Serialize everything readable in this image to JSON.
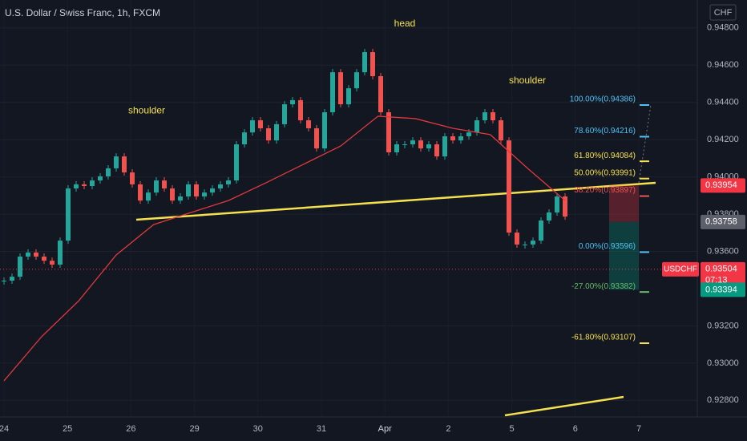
{
  "chart_data": {
    "type": "candlestick",
    "title": "U.S. Dollar / Swiss Franc, 1h, FXCM",
    "currency": "CHF",
    "x_labels": [
      "24",
      "25",
      "26",
      "29",
      "30",
      "31",
      "Apr",
      "2",
      "5",
      "6",
      "7"
    ],
    "series": [
      {
        "name": "USDCHF",
        "up_color": "#26a69a",
        "down_color": "#ef5350",
        "values": [
          0.93443,
          0.93464,
          0.93572,
          0.93594,
          0.93572,
          0.9355,
          0.93529,
          0.93658,
          0.93938,
          0.9396,
          0.93951,
          0.93981,
          0.94003,
          0.94046,
          0.9411,
          0.94024,
          0.9396,
          0.93873,
          0.93916,
          0.93981,
          0.93938,
          0.93873,
          0.93895,
          0.9396,
          0.93895,
          0.93916,
          0.93938,
          0.9396,
          0.93981,
          0.94175,
          0.94239,
          0.94304,
          0.94261,
          0.94196,
          0.94283,
          0.9439,
          0.94412,
          0.94304,
          0.94261,
          0.94153,
          0.94347,
          0.94562,
          0.9439,
          0.94476,
          0.94562,
          0.9467,
          0.94541,
          0.94347,
          0.94132,
          0.94175,
          0.94175,
          0.94196,
          0.94153,
          0.94175,
          0.9411,
          0.94218,
          0.94196,
          0.94218,
          0.94239,
          0.94304,
          0.94347,
          0.94304,
          0.94196,
          0.93701,
          0.93637,
          0.93637,
          0.93658,
          0.93766,
          0.93809,
          0.93895,
          0.93787
        ]
      },
      {
        "name": "MA",
        "color": "#e0393e",
        "values": [
          0.92905,
          0.93141,
          0.93335,
          0.93581,
          0.93744,
          0.93809,
          0.93873,
          0.93968,
          0.94067,
          0.94166,
          0.94326,
          0.94313,
          0.94261,
          0.94227,
          0.94046,
          0.93873
        ]
      }
    ],
    "ylim": [
      0.92711,
      0.9495
    ],
    "yticks": [
      {
        "value": 0.948,
        "label": "0.94800"
      },
      {
        "value": 0.946,
        "label": "0.94600"
      },
      {
        "value": 0.944,
        "label": "0.94400"
      },
      {
        "value": 0.942,
        "label": "0.94200"
      },
      {
        "value": 0.94,
        "label": "0.94000"
      },
      {
        "value": 0.938,
        "label": "0.93800"
      },
      {
        "value": 0.936,
        "label": "0.93600"
      },
      {
        "value": 0.932,
        "label": "0.93200"
      },
      {
        "value": 0.93,
        "label": "0.93000"
      },
      {
        "value": 0.928,
        "label": "0.92800"
      }
    ],
    "annotations": [
      {
        "text": "shoulder",
        "price": 0.94354
      },
      {
        "text": "head",
        "price": 0.94821
      },
      {
        "text": "shoulder",
        "price": 0.94515
      }
    ],
    "fib_levels": [
      {
        "label": "100.00%(0.94386)",
        "price": 0.94386,
        "color": "#4fc3f7"
      },
      {
        "label": "78.60%(0.94216)",
        "price": 0.94216,
        "color": "#4fc3f7"
      },
      {
        "label": "61.80%(0.94084)",
        "price": 0.94084,
        "color": "#f5e050"
      },
      {
        "label": "50.00%(0.93991)",
        "price": 0.93991,
        "color": "#f5e050"
      },
      {
        "label": "38.20%(0.93897)",
        "price": 0.93897,
        "color": "#ef5350"
      },
      {
        "label": "0.00%(0.93596)",
        "price": 0.93596,
        "color": "#4fc3f7"
      },
      {
        "label": "-27.00%(0.93382)",
        "price": 0.93382,
        "color": "#66bb6a"
      },
      {
        "label": "-61.80%(0.93107)",
        "price": 0.93107,
        "color": "#f5e050"
      }
    ],
    "price_labels": [
      {
        "label": "0.93954",
        "price": 0.93954,
        "color": "#f23645"
      },
      {
        "label": "0.93758",
        "price": 0.93758,
        "color": "#5d606b"
      },
      {
        "label": "0.93504",
        "price": 0.93504,
        "color": "#f23645",
        "symbol": "USDCHF",
        "countdown": "07:13"
      },
      {
        "label": "0.93394",
        "price": 0.93394,
        "color": "#089981"
      }
    ]
  }
}
